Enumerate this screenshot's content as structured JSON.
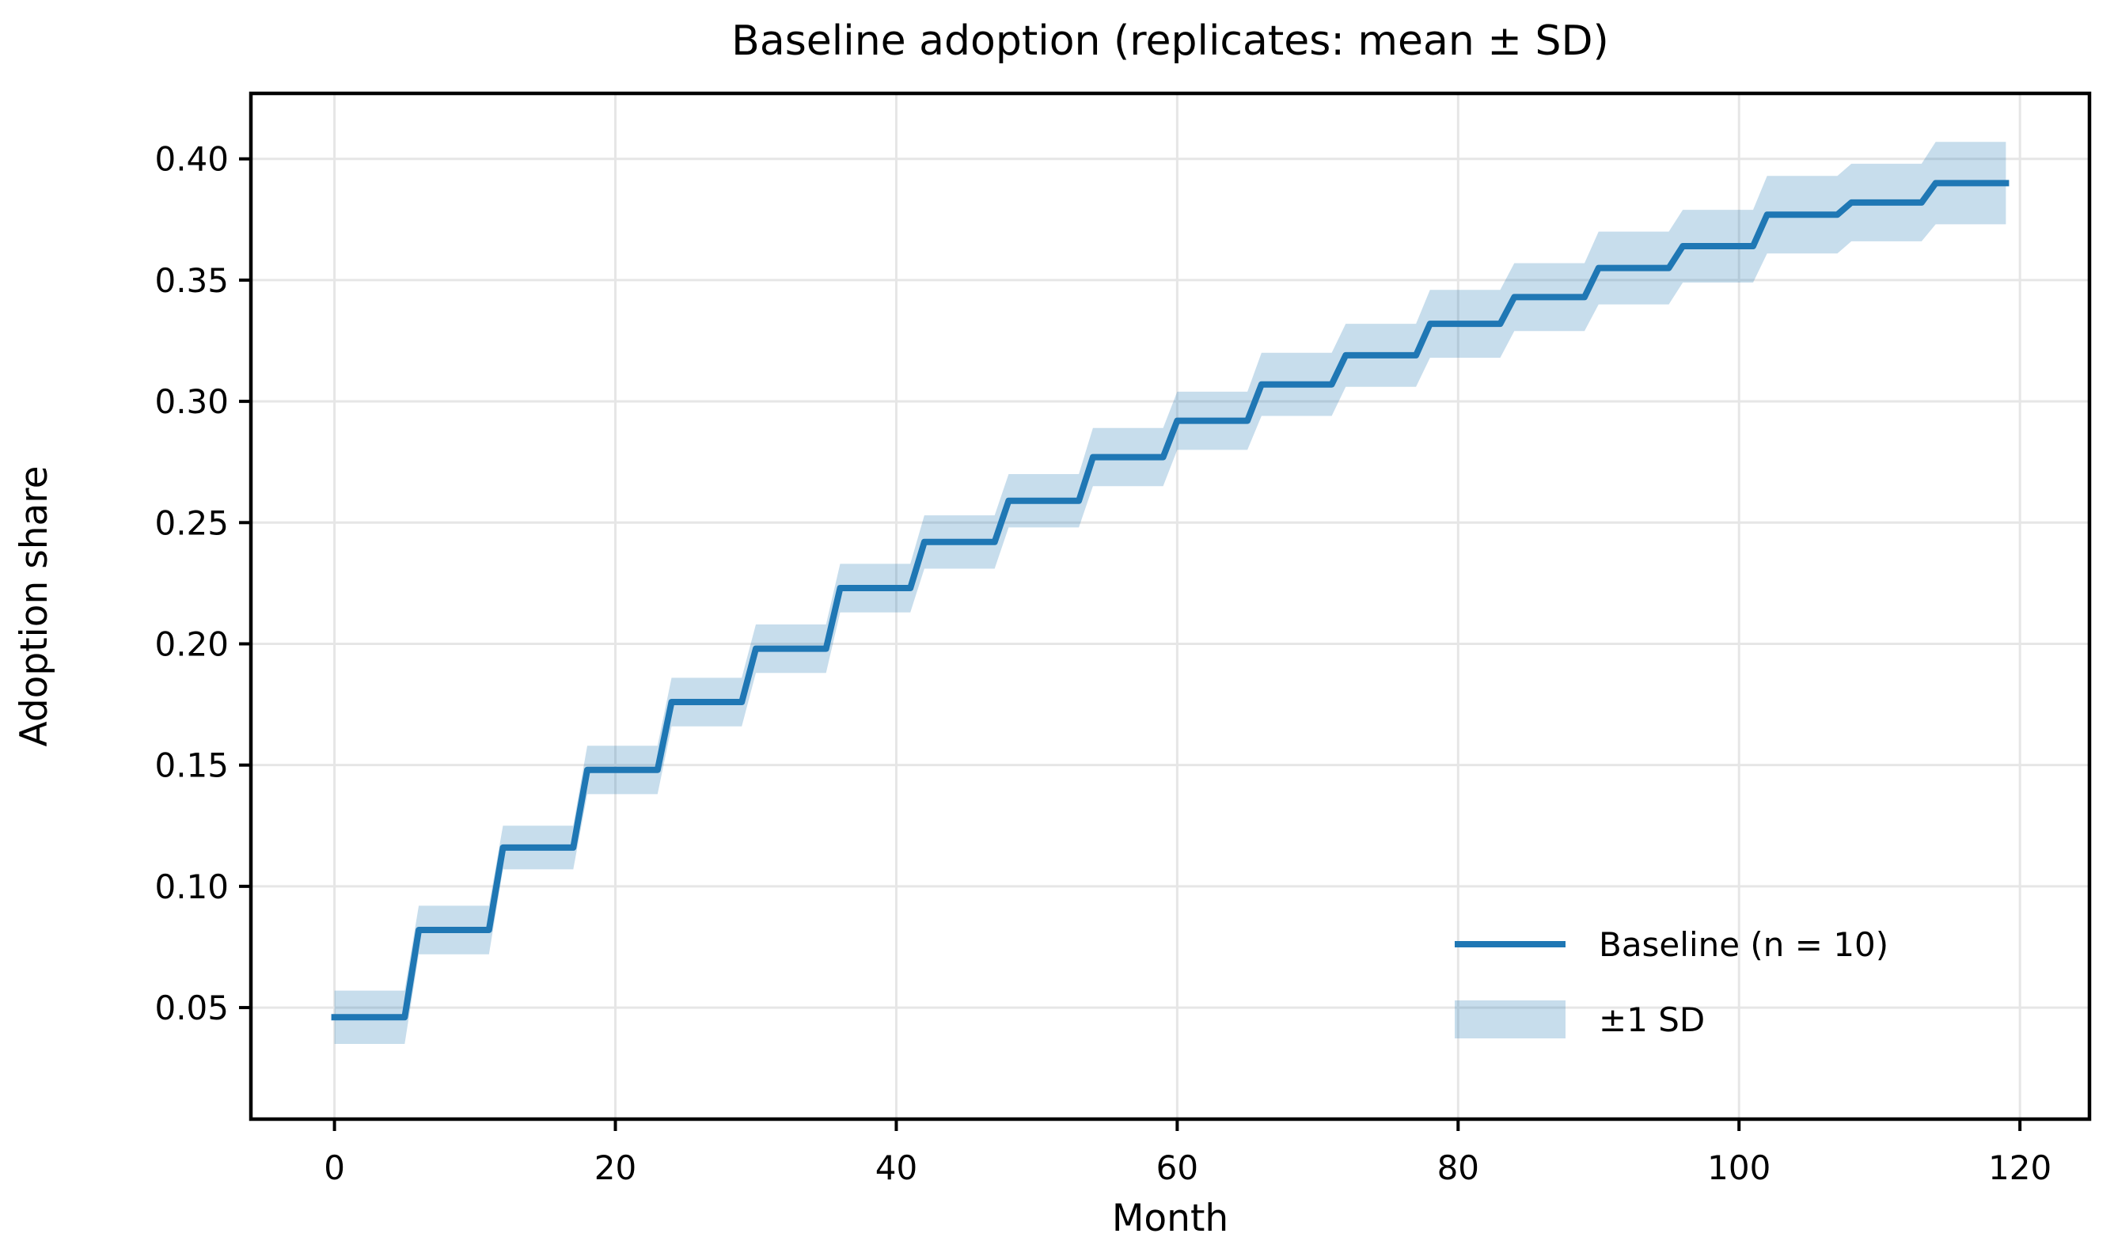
{
  "chart_data": {
    "type": "line",
    "title": "Baseline adoption (replicates: mean ± SD)",
    "xlabel": "Month",
    "ylabel": "Adoption share",
    "xlim": [
      -5.95,
      124.95
    ],
    "ylim": [
      0.004,
      0.427
    ],
    "grid": true,
    "x_ticks": {
      "values": [
        0,
        20,
        40,
        60,
        80,
        100,
        120
      ],
      "labels": [
        "0",
        "20",
        "40",
        "60",
        "80",
        "100",
        "120"
      ]
    },
    "y_ticks": {
      "values": [
        0.05,
        0.1,
        0.15,
        0.2,
        0.25,
        0.3,
        0.35,
        0.4
      ],
      "labels": [
        "0.05",
        "0.10",
        "0.15",
        "0.20",
        "0.25",
        "0.30",
        "0.35",
        "0.40"
      ]
    },
    "colors": {
      "line": "#1f77b4",
      "band": "#1f77b4",
      "band_alpha": 0.25,
      "grid": "#e6e6e6",
      "spine": "#000000",
      "text": "#000000"
    },
    "legend": {
      "position": "lower right",
      "entries": [
        {
          "label": "Baseline (n = 10)",
          "swatch": "line"
        },
        {
          "label": "±1 SD",
          "swatch": "band"
        }
      ]
    },
    "series": [
      {
        "name": "Baseline (n = 10)",
        "step_months": 6,
        "first_month": 0,
        "last_month": 119,
        "segment_starts": [
          0,
          6,
          12,
          18,
          24,
          30,
          36,
          42,
          48,
          54,
          60,
          66,
          72,
          78,
          84,
          90,
          96,
          102,
          108,
          114
        ],
        "means": [
          0.046,
          0.082,
          0.116,
          0.148,
          0.176,
          0.198,
          0.223,
          0.242,
          0.259,
          0.277,
          0.292,
          0.307,
          0.319,
          0.332,
          0.343,
          0.355,
          0.364,
          0.377,
          0.382,
          0.39
        ],
        "sds": [
          0.011,
          0.01,
          0.009,
          0.01,
          0.01,
          0.01,
          0.01,
          0.011,
          0.011,
          0.012,
          0.012,
          0.013,
          0.013,
          0.014,
          0.014,
          0.015,
          0.015,
          0.016,
          0.016,
          0.017
        ]
      }
    ]
  }
}
